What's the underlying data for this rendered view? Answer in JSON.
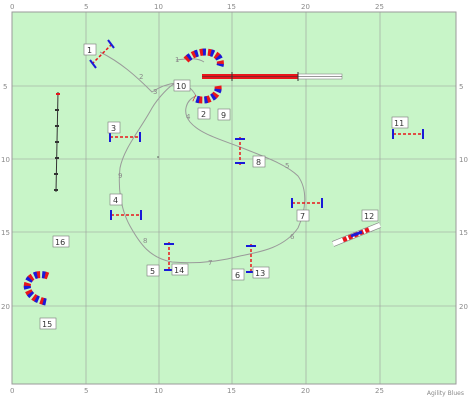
{
  "credit": "Agility Blues",
  "colors": {
    "field": "#c8f5c8",
    "grid": "#9a9a9a",
    "path": "#9a9a9a",
    "red": "#e8161b",
    "blue": "#1a1ad8"
  },
  "axis": {
    "x_ticks": [
      "0",
      "5",
      "10",
      "15",
      "20",
      "25"
    ],
    "y_ticks": [
      "0",
      "5",
      "10",
      "15",
      "20"
    ]
  },
  "obstacles": [
    {
      "id": "1",
      "type": "jump"
    },
    {
      "id": "2",
      "type": "tunnel"
    },
    {
      "id": "3",
      "type": "jump"
    },
    {
      "id": "4",
      "type": "jump"
    },
    {
      "id": "5",
      "type": "jump"
    },
    {
      "id": "6",
      "type": "jump"
    },
    {
      "id": "7",
      "type": "jump"
    },
    {
      "id": "8",
      "type": "jump"
    },
    {
      "id": "9",
      "type": "tunnel"
    },
    {
      "id": "10",
      "type": "dogwalk"
    },
    {
      "id": "11",
      "type": "jump"
    },
    {
      "id": "12",
      "type": "seesaw"
    },
    {
      "id": "13",
      "type": "weave"
    },
    {
      "id": "14",
      "type": "weave"
    },
    {
      "id": "15",
      "type": "tunnel"
    },
    {
      "id": "16",
      "type": "weave"
    }
  ],
  "path_markers": [
    "1",
    "2",
    "3",
    "4",
    "5",
    "6",
    "7",
    "8",
    "9"
  ]
}
